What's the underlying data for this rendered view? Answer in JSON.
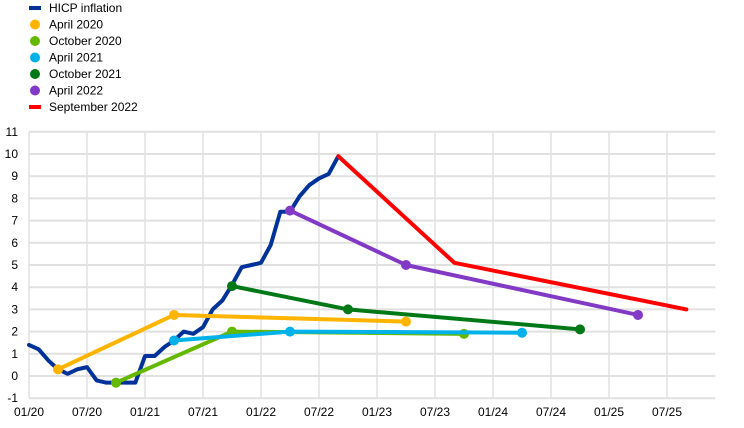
{
  "chart_data": {
    "type": "line",
    "title": "",
    "xlabel": "",
    "ylabel": "",
    "x_unit": "months since 01/20",
    "xlim": [
      0,
      71
    ],
    "ylim": [
      -1,
      11
    ],
    "yticks": [
      -1,
      0,
      1,
      2,
      3,
      4,
      5,
      6,
      7,
      8,
      9,
      10,
      11
    ],
    "xticks": [
      {
        "month": 0,
        "label": "01/20"
      },
      {
        "month": 6,
        "label": "07/20"
      },
      {
        "month": 12,
        "label": "01/21"
      },
      {
        "month": 18,
        "label": "07/21"
      },
      {
        "month": 24,
        "label": "01/22"
      },
      {
        "month": 30,
        "label": "07/22"
      },
      {
        "month": 36,
        "label": "01/23"
      },
      {
        "month": 42,
        "label": "07/23"
      },
      {
        "month": 48,
        "label": "01/24"
      },
      {
        "month": 54,
        "label": "07/24"
      },
      {
        "month": 60,
        "label": "01/25"
      },
      {
        "month": 66,
        "label": "07/25"
      }
    ],
    "grid": true,
    "legend_position": "top-left",
    "series": [
      {
        "name": "HICP inflation",
        "color": "#003299",
        "markers": false,
        "points": [
          [
            0,
            1.4
          ],
          [
            1,
            1.2
          ],
          [
            2,
            0.7
          ],
          [
            3,
            0.3
          ],
          [
            4,
            0.1
          ],
          [
            5,
            0.3
          ],
          [
            6,
            0.4
          ],
          [
            7,
            -0.2
          ],
          [
            8,
            -0.3
          ],
          [
            9,
            -0.3
          ],
          [
            10,
            -0.3
          ],
          [
            11,
            -0.3
          ],
          [
            12,
            0.9
          ],
          [
            13,
            0.9
          ],
          [
            14,
            1.3
          ],
          [
            15,
            1.6
          ],
          [
            16,
            2.0
          ],
          [
            17,
            1.9
          ],
          [
            18,
            2.2
          ],
          [
            19,
            3.0
          ],
          [
            20,
            3.4
          ],
          [
            21,
            4.1
          ],
          [
            22,
            4.9
          ],
          [
            23,
            5.0
          ],
          [
            24,
            5.1
          ],
          [
            25,
            5.9
          ],
          [
            26,
            7.4
          ],
          [
            27,
            7.4
          ],
          [
            28,
            8.1
          ],
          [
            29,
            8.6
          ],
          [
            30,
            8.9
          ],
          [
            31,
            9.1
          ],
          [
            32,
            9.9
          ]
        ]
      },
      {
        "name": "April 2020",
        "color": "#FFB400",
        "markers": true,
        "points": [
          [
            3,
            0.3
          ],
          [
            15,
            2.75
          ],
          [
            39,
            2.45
          ]
        ]
      },
      {
        "name": "October 2020",
        "color": "#65B800",
        "markers": true,
        "points": [
          [
            9,
            -0.3
          ],
          [
            21,
            2.0
          ],
          [
            45,
            1.9
          ]
        ]
      },
      {
        "name": "April 2021",
        "color": "#00B1EA",
        "markers": true,
        "points": [
          [
            15,
            1.6
          ],
          [
            27,
            2.0
          ],
          [
            51,
            1.95
          ]
        ]
      },
      {
        "name": "October 2021",
        "color": "#007816",
        "markers": true,
        "points": [
          [
            21,
            4.05
          ],
          [
            33,
            3.0
          ],
          [
            57,
            2.1
          ]
        ]
      },
      {
        "name": "April 2022",
        "color": "#8139C6",
        "markers": true,
        "points": [
          [
            27,
            7.45
          ],
          [
            39,
            5.0
          ],
          [
            63,
            2.75
          ]
        ]
      },
      {
        "name": "September 2022",
        "color": "#FF0000",
        "markers": false,
        "points": [
          [
            32,
            9.9
          ],
          [
            44,
            5.1
          ],
          [
            68,
            3.0
          ]
        ]
      }
    ]
  }
}
